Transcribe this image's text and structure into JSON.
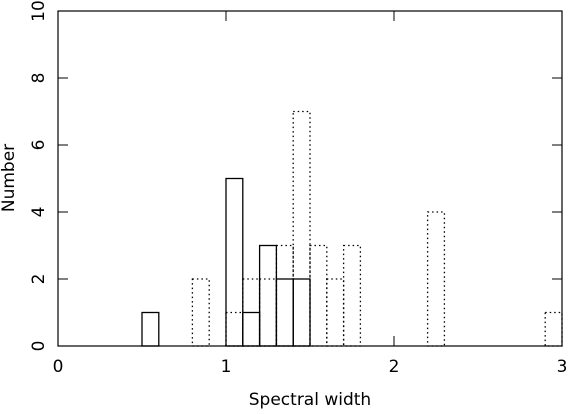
{
  "chart_data": {
    "type": "histogram",
    "x_label": "Spectral width",
    "y_label": "Number",
    "bins": [
      0.0,
      0.1,
      0.2,
      0.3,
      0.4,
      0.5,
      0.6,
      0.7,
      0.8,
      0.9,
      1.0,
      1.1,
      1.2,
      1.3,
      1.4,
      1.5,
      1.6,
      1.7,
      1.8,
      1.9,
      2.0,
      2.1,
      2.2,
      2.3,
      2.4,
      2.5,
      2.6,
      2.7,
      2.8,
      2.9,
      3.0
    ],
    "series": [
      {
        "color": "#000000",
        "linestyle": "solid",
        "values": [
          0,
          0,
          0,
          0,
          0,
          1,
          0,
          0,
          0,
          0,
          5,
          1,
          3,
          2,
          2,
          0,
          0,
          0,
          0,
          0,
          0,
          0,
          0,
          0,
          0,
          0,
          0,
          0,
          0,
          0
        ]
      },
      {
        "color": "#000000",
        "linestyle": "dotted",
        "values": [
          0,
          0,
          0,
          0,
          0,
          0,
          0,
          0,
          2,
          0,
          1,
          2,
          2,
          3,
          7,
          3,
          2,
          3,
          0,
          0,
          0,
          0,
          4,
          0,
          0,
          0,
          0,
          0,
          0,
          1
        ]
      }
    ],
    "xlim": [
      0,
      3
    ],
    "ylim": [
      0,
      10
    ],
    "xticks": [
      0,
      1,
      2,
      3
    ],
    "yticks": [
      0,
      2,
      4,
      6,
      8,
      10
    ],
    "grid": false
  }
}
